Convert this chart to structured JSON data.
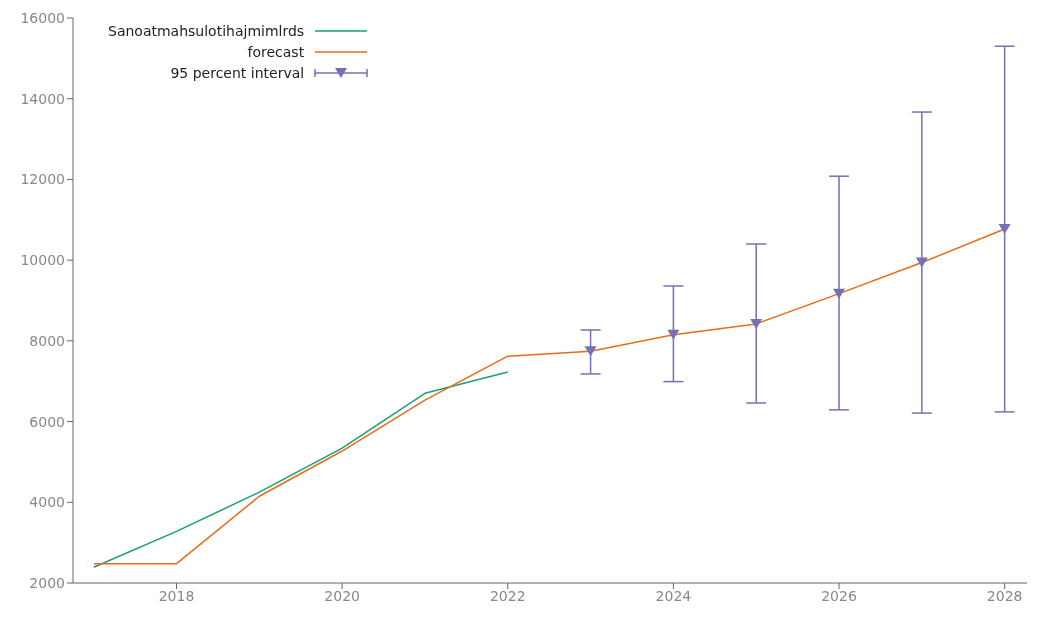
{
  "chart_data": {
    "type": "line",
    "x": [
      2017,
      2018,
      2019,
      2020,
      2021,
      2022,
      2023,
      2024,
      2025,
      2026,
      2027,
      2028
    ],
    "xlim": [
      2016.75,
      2028.27
    ],
    "xticks": [
      2018,
      2020,
      2022,
      2024,
      2026,
      2028
    ],
    "ylim": [
      2000,
      16000
    ],
    "yticks": [
      2000,
      4000,
      6000,
      8000,
      10000,
      12000,
      14000,
      16000
    ],
    "grid": false,
    "legend": "top left",
    "series": [
      {
        "name": "Sanoatmahsulotihajmimlrds",
        "color": "#1a9e77",
        "x": [
          2017,
          2018,
          2019,
          2020,
          2021,
          2022
        ],
        "values": [
          2390,
          3280,
          4250,
          5340,
          6700,
          7230
        ]
      },
      {
        "name": "forecast",
        "color": "#e66c1a",
        "values": [
          2480,
          2480,
          4150,
          5270,
          6530,
          7620,
          7740,
          8150,
          8420,
          9170,
          9940,
          10770
        ]
      },
      {
        "name": "95 percent interval",
        "type": "scatter",
        "marker": "triangle",
        "color": "#7570b3",
        "x": [
          2023,
          2024,
          2025,
          2026,
          2027,
          2028
        ],
        "values": [
          7740,
          8150,
          8420,
          9170,
          9940,
          10770
        ],
        "errors": [
          [
            7180,
            8270
          ],
          [
            6990,
            9360
          ],
          [
            6460,
            10400
          ],
          [
            6290,
            12080
          ],
          [
            6210,
            13670
          ],
          [
            6240,
            15300
          ]
        ]
      }
    ]
  }
}
